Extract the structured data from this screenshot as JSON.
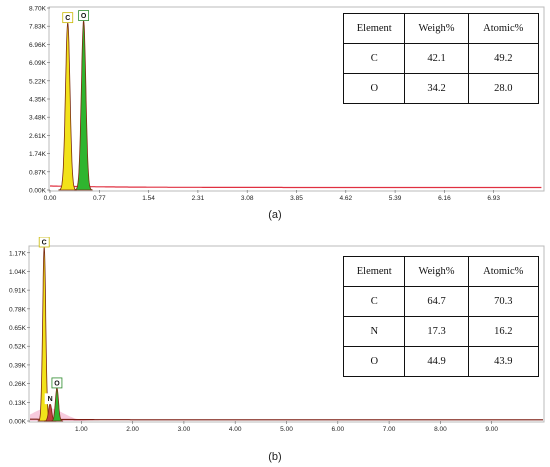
{
  "chart_data": [
    {
      "type": "line",
      "panel_caption": "(a)",
      "xlim": [
        0,
        7.7
      ],
      "ylim": [
        0,
        8700
      ],
      "y_ticks": [
        "0.00K",
        "0.87K",
        "1.74K",
        "2.61K",
        "3.48K",
        "4.35K",
        "5.22K",
        "6.09K",
        "6.96K",
        "7.83K",
        "8.70K"
      ],
      "x_ticks": [
        "0.00",
        "0.77",
        "1.54",
        "2.31",
        "3.08",
        "3.85",
        "4.62",
        "5.39",
        "6.16",
        "6.93"
      ],
      "peaks": [
        {
          "label": "C",
          "x": 0.277,
          "y": 8000,
          "color": "#f2e21a"
        },
        {
          "label": "O",
          "x": 0.525,
          "y": 8100,
          "color": "#2fb52f"
        }
      ],
      "background_color": "#e03040",
      "table": {
        "headers": [
          "Element",
          "Weigh%",
          "Atomic%"
        ],
        "rows": [
          [
            "C",
            "42.1",
            "49.2"
          ],
          [
            "O",
            "34.2",
            "28.0"
          ]
        ]
      }
    },
    {
      "type": "line",
      "panel_caption": "(b)",
      "xlim": [
        0,
        10
      ],
      "ylim": [
        0,
        1210
      ],
      "y_ticks": [
        "0.00K",
        "0.13K",
        "0.26K",
        "0.39K",
        "0.52K",
        "0.65K",
        "0.78K",
        "0.91K",
        "1.04K",
        "1.17K"
      ],
      "x_ticks": [
        "1.00",
        "2.00",
        "3.00",
        "4.00",
        "5.00",
        "6.00",
        "7.00",
        "8.00",
        "9.00"
      ],
      "peaks": [
        {
          "label": "C",
          "x": 0.277,
          "y": 1210,
          "color": "#f2e21a"
        },
        {
          "label": "N",
          "x": 0.392,
          "y": 120,
          "color": "#c04040"
        },
        {
          "label": "O",
          "x": 0.525,
          "y": 230,
          "color": "#2fb52f"
        }
      ],
      "background_color": "#f3b3cf",
      "table": {
        "headers": [
          "Element",
          "Weigh%",
          "Atomic%"
        ],
        "rows": [
          [
            "C",
            "64.7",
            "70.3"
          ],
          [
            "N",
            "17.3",
            "16.2"
          ],
          [
            "O",
            "44.9",
            "43.9"
          ]
        ]
      }
    }
  ]
}
